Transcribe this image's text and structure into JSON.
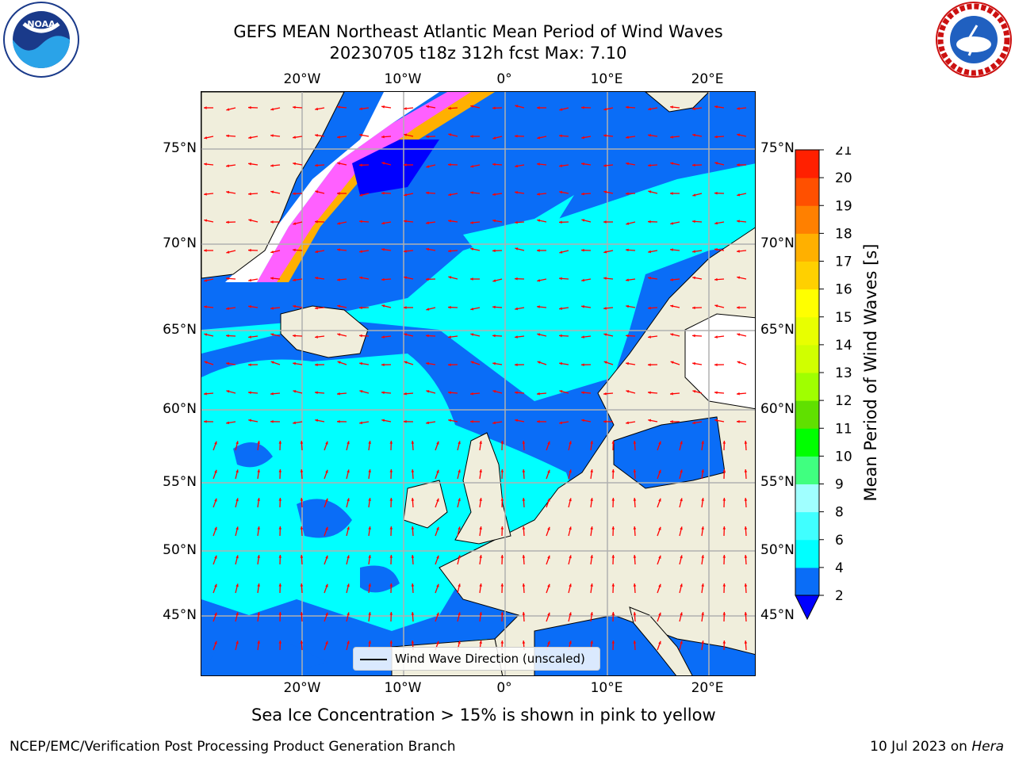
{
  "title": {
    "line1": "GEFS MEAN Northeast Atlantic Mean Period of Wind Waves",
    "line2": "20230705 t18z 312h fcst   Max: 7.10"
  },
  "map": {
    "projection": "lat-lon",
    "lon_ticks": [
      "20°W",
      "10°W",
      "0°",
      "10°E",
      "20°E"
    ],
    "lat_ticks": [
      "75°N",
      "70°N",
      "65°N",
      "60°N",
      "55°N",
      "50°N",
      "45°N"
    ],
    "grid": true,
    "legend": {
      "label": "Wind Wave Direction (unscaled)",
      "placement": "bottom-center"
    },
    "arrow_color": "#ff0000"
  },
  "colorbar": {
    "label": "Mean Period of Wind Waves [s]",
    "ticks": [
      "2",
      "4",
      "6",
      "8",
      "9",
      "10",
      "11",
      "12",
      "13",
      "14",
      "15",
      "16",
      "17",
      "18",
      "19",
      "20",
      "21"
    ],
    "colors": [
      "#0a6df7",
      "#00ffff",
      "#40ffff",
      "#a0ffff",
      "#40ff80",
      "#00ff00",
      "#60e000",
      "#a0ff00",
      "#d0ff00",
      "#e8ff00",
      "#ffff00",
      "#ffd000",
      "#ffb000",
      "#ff8000",
      "#ff5000",
      "#ff2000",
      "#ff0000"
    ],
    "under_color": "#0000ff",
    "extend": "min"
  },
  "caption": "Sea Ice Concentration > 15% is shown in pink to yellow",
  "footer": {
    "left": "NCEP/EMC/Verification Post Processing Product Generation Branch",
    "right_date": "10 Jul 2023 on ",
    "right_host": "Hera"
  },
  "logos": {
    "noaa": {
      "text": "NOAA",
      "icon": "noaa-logo-icon"
    },
    "nws": {
      "text": "NATIONAL WEATHER SERVICE",
      "icon": "nws-logo-icon"
    }
  }
}
